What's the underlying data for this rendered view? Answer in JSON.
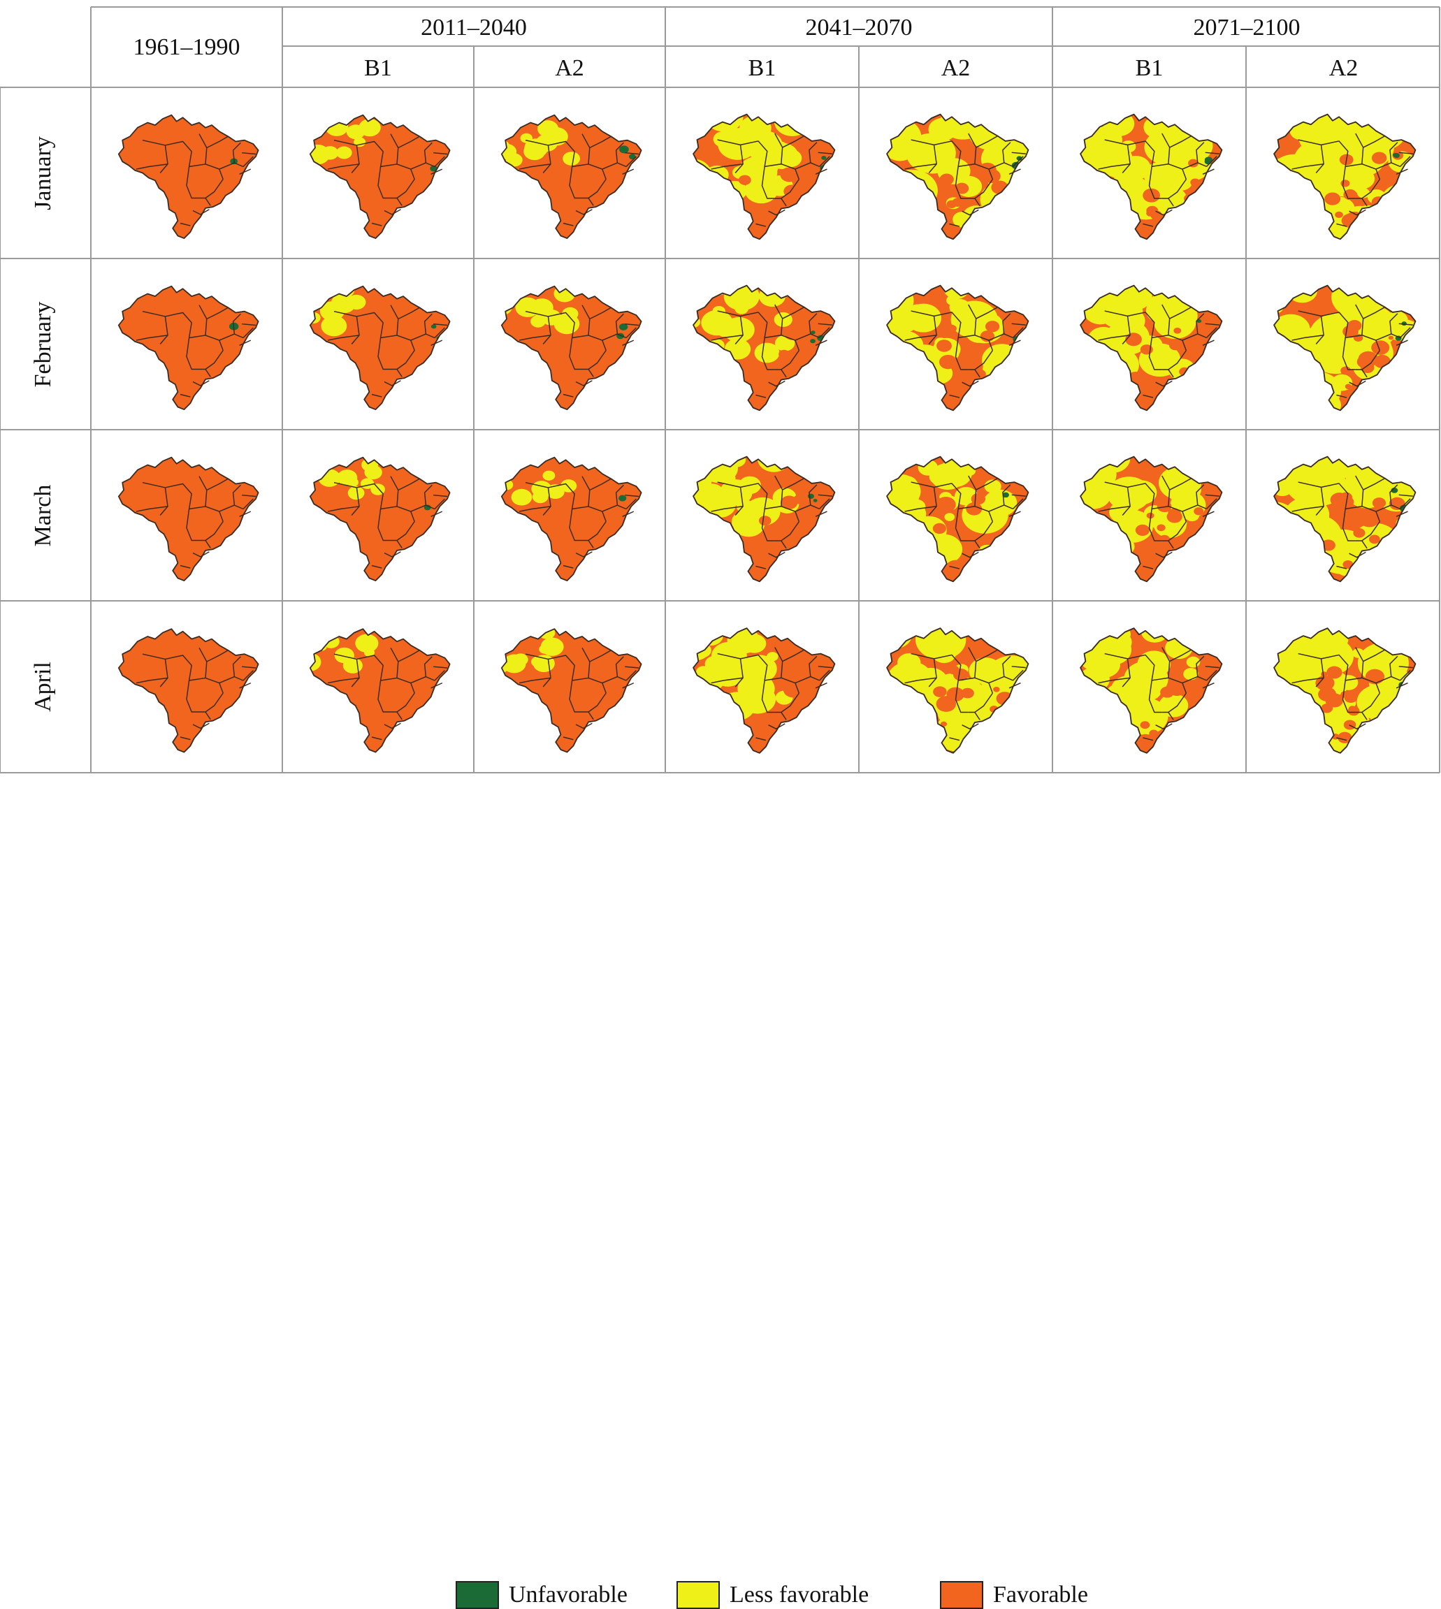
{
  "header": {
    "baseline_period": "1961–1990",
    "periods": [
      {
        "label": "2011–2040",
        "scenarios": [
          "B1",
          "A2"
        ]
      },
      {
        "label": "2041–2070",
        "scenarios": [
          "B1",
          "A2"
        ]
      },
      {
        "label": "2071–2100",
        "scenarios": [
          "B1",
          "A2"
        ]
      }
    ]
  },
  "rows": [
    {
      "month": "January"
    },
    {
      "month": "February"
    },
    {
      "month": "March"
    },
    {
      "month": "April"
    }
  ],
  "map_levels": [
    [
      0.0,
      0.08,
      0.12,
      0.4,
      0.68,
      0.55,
      0.88
    ],
    [
      0.0,
      0.08,
      0.1,
      0.32,
      0.6,
      0.52,
      0.82
    ],
    [
      0.0,
      0.07,
      0.08,
      0.35,
      0.62,
      0.54,
      0.8
    ],
    [
      0.0,
      0.04,
      0.06,
      0.42,
      0.66,
      0.56,
      0.84
    ]
  ],
  "unfavorable_patches": [
    [
      1,
      2,
      2,
      2,
      2,
      2,
      2
    ],
    [
      1,
      2,
      2,
      3,
      1,
      1,
      2
    ],
    [
      0,
      1,
      1,
      2,
      1,
      1,
      2
    ],
    [
      0,
      0,
      0,
      0,
      0,
      0,
      1
    ]
  ],
  "legend": {
    "items": [
      {
        "label": "Unfavorable",
        "color": "#1a6b35"
      },
      {
        "label": "Less favorable",
        "color": "#eef018"
      },
      {
        "label": "Favorable",
        "color": "#f2651e"
      }
    ]
  },
  "colors": {
    "grid_line": "#9a9a9a",
    "state_border": "#3a2a20"
  }
}
